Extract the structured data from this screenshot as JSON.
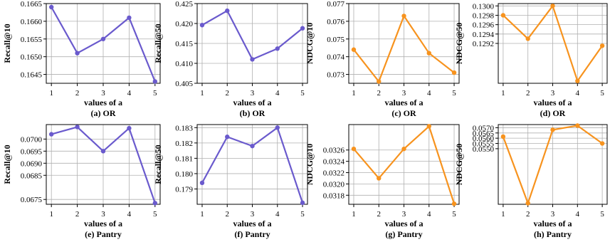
{
  "colors": {
    "purple": "#6a5acd",
    "orange": "#f7931e",
    "grid": "#b0b0b0"
  },
  "chart_data": [
    {
      "type": "line",
      "caption": "(a) OR",
      "xlabel": "values of a",
      "ylabel": "Recall@10",
      "color": "purple",
      "x": [
        1,
        2,
        3,
        4,
        5
      ],
      "y": [
        0.1664,
        0.1651,
        0.1655,
        0.1661,
        0.1643
      ],
      "ylim": [
        0.16425,
        0.1665
      ],
      "yticks": [
        0.1645,
        0.165,
        0.1655,
        0.166,
        0.1665
      ],
      "yticklabels": [
        "0.1645",
        "0.1650",
        "0.1655",
        "0.1660",
        "0.1665"
      ],
      "grid": true
    },
    {
      "type": "line",
      "caption": "(b) OR",
      "xlabel": "values of a",
      "ylabel": "Recall@50",
      "color": "purple",
      "x": [
        1,
        2,
        3,
        4,
        5
      ],
      "y": [
        0.4196,
        0.4232,
        0.411,
        0.4137,
        0.4188
      ],
      "ylim": [
        0.405,
        0.425
      ],
      "yticks": [
        0.405,
        0.41,
        0.415,
        0.42,
        0.425
      ],
      "yticklabels": [
        "0.405",
        "0.410",
        "0.415",
        "0.420",
        "0.425"
      ],
      "grid": true
    },
    {
      "type": "line",
      "caption": "(c) OR",
      "xlabel": "values of a",
      "ylabel": "NDCG@10",
      "color": "orange",
      "x": [
        1,
        2,
        3,
        4,
        5
      ],
      "y": [
        0.0744,
        0.0726,
        0.0763,
        0.0742,
        0.0731
      ],
      "ylim": [
        0.0725,
        0.077
      ],
      "yticks": [
        0.073,
        0.074,
        0.075,
        0.076,
        0.077
      ],
      "yticklabels": [
        "0.073",
        "0.074",
        "0.075",
        "0.076",
        "0.077"
      ],
      "grid": true
    },
    {
      "type": "line",
      "caption": "(d) OR",
      "xlabel": "values of a",
      "ylabel": "NDCG@50",
      "color": "orange",
      "x": [
        1,
        2,
        3,
        4,
        5
      ],
      "y": [
        0.1298,
        0.1293,
        0.13,
        0.1284,
        0.12915
      ],
      "ylim": [
        0.12835,
        0.13005
      ],
      "yticks": [
        0.1292,
        0.1294,
        0.1296,
        0.1298,
        0.13
      ],
      "yticklabels": [
        "0.1292",
        "0.1294",
        "0.1296",
        "0.1298",
        "0.1300"
      ],
      "grid": true
    },
    {
      "type": "line",
      "caption": "(e) Pantry",
      "xlabel": "values of a",
      "ylabel": "Recall@10",
      "color": "purple",
      "x": [
        1,
        2,
        3,
        4,
        5
      ],
      "y": [
        0.0702,
        0.0705,
        0.0695,
        0.07045,
        0.06735
      ],
      "ylim": [
        0.0673,
        0.0706
      ],
      "yticks": [
        0.0675,
        0.0685,
        0.069,
        0.0695,
        0.07
      ],
      "yticklabels": [
        "0.0675",
        "0.0685",
        "0.0690",
        "0.0695",
        "0.0700"
      ],
      "grid": true
    },
    {
      "type": "line",
      "caption": "(f) Pantry",
      "xlabel": "values of a",
      "ylabel": "Recall@50",
      "color": "purple",
      "x": [
        1,
        2,
        3,
        4,
        5
      ],
      "y": [
        0.1794,
        0.1824,
        0.1818,
        0.183,
        0.1781
      ],
      "ylim": [
        0.178,
        0.1832
      ],
      "yticks": [
        0.179,
        0.18,
        0.181,
        0.182,
        0.183
      ],
      "yticklabels": [
        "0.179",
        "0.180",
        "0.181",
        "0.182",
        "0.183"
      ],
      "grid": true
    },
    {
      "type": "line",
      "caption": "(g) Pantry",
      "xlabel": "values of a",
      "ylabel": "NDCG@10",
      "color": "orange",
      "x": [
        1,
        2,
        3,
        4,
        5
      ],
      "y": [
        0.03262,
        0.0321,
        0.03262,
        0.03302,
        0.03165
      ],
      "ylim": [
        0.03164,
        0.03305
      ],
      "yticks": [
        0.0318,
        0.032,
        0.0322,
        0.0324,
        0.0326
      ],
      "yticklabels": [
        "0.0318",
        "0.0320",
        "0.0322",
        "0.0324",
        "0.0326"
      ],
      "grid": true
    },
    {
      "type": "line",
      "caption": "(h) Pantry",
      "xlabel": "values of a",
      "ylabel": "NDCG@50",
      "color": "orange",
      "x": [
        1,
        2,
        3,
        4,
        5
      ],
      "y": [
        0.05615,
        0.0498,
        0.0568,
        0.0572,
        0.0555
      ],
      "ylim": [
        0.0497,
        0.0573
      ],
      "yticks": [
        0.055,
        0.0555,
        0.056,
        0.0565,
        0.057
      ],
      "yticklabels": [
        "0.0550",
        "0.0555",
        "0.0560",
        "0.0565",
        "0.0570"
      ],
      "grid": true
    }
  ]
}
